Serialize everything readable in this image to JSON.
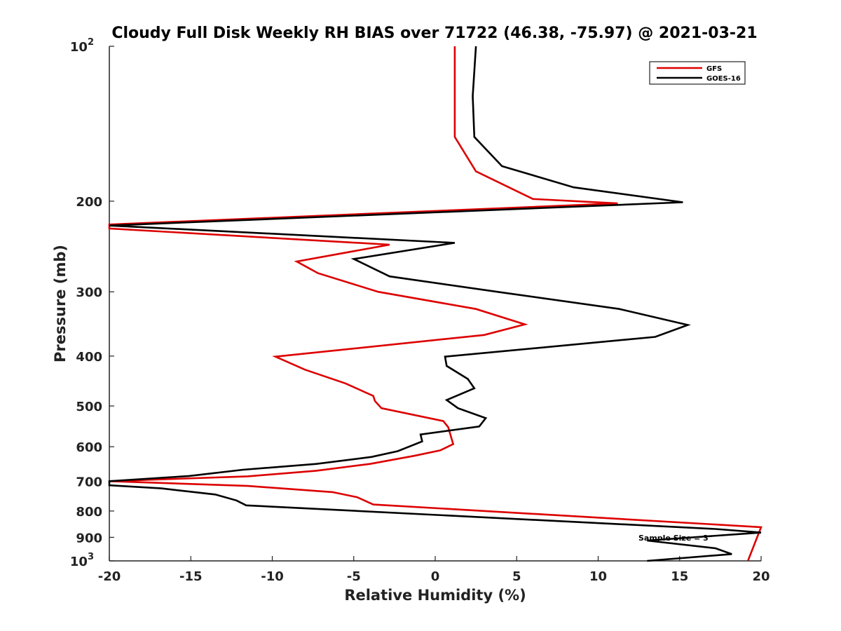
{
  "chart_data": {
    "type": "line",
    "title": "Cloudy Full Disk Weekly RH BIAS over 71722 (46.38, -75.97) @ 2021-03-21",
    "xlabel": "Relative Humidity (%)",
    "ylabel": "Pressure (mb)",
    "xlim": [
      -20,
      20
    ],
    "ylim": [
      100,
      1000
    ],
    "yscale": "log",
    "y_reversed": true,
    "xticks": [
      -20,
      -15,
      -10,
      -5,
      0,
      5,
      10,
      15,
      20
    ],
    "yticks": [
      {
        "value": 100,
        "label": "10",
        "sup": "2"
      },
      {
        "value": 200,
        "label": "200",
        "sup": ""
      },
      {
        "value": 300,
        "label": "300",
        "sup": ""
      },
      {
        "value": 400,
        "label": "400",
        "sup": ""
      },
      {
        "value": 500,
        "label": "500",
        "sup": ""
      },
      {
        "value": 600,
        "label": "600",
        "sup": ""
      },
      {
        "value": 700,
        "label": "700",
        "sup": ""
      },
      {
        "value": 800,
        "label": "800",
        "sup": ""
      },
      {
        "value": 900,
        "label": "900",
        "sup": ""
      },
      {
        "value": 1000,
        "label": "10",
        "sup": "3"
      }
    ],
    "legend_position": "top-right",
    "annotation": "Sample Size = 3",
    "series": [
      {
        "name": "GFS",
        "color": "#dd0000",
        "points": [
          [
            1.2,
            100
          ],
          [
            1.2,
            150
          ],
          [
            2.5,
            175
          ],
          [
            6.0,
            198
          ],
          [
            11.2,
            202
          ],
          [
            -20.0,
            222
          ],
          [
            -20.0,
            226
          ],
          [
            -2.8,
            243
          ],
          [
            -8.5,
            262
          ],
          [
            -7.2,
            276
          ],
          [
            -3.5,
            300
          ],
          [
            2.5,
            324
          ],
          [
            5.5,
            347
          ],
          [
            3.0,
            364
          ],
          [
            -9.8,
            401
          ],
          [
            -8.0,
            425
          ],
          [
            -5.5,
            452
          ],
          [
            -3.8,
            478
          ],
          [
            -3.7,
            489
          ],
          [
            -3.3,
            505
          ],
          [
            0.5,
            535
          ],
          [
            0.8,
            550
          ],
          [
            1.1,
            593
          ],
          [
            0.3,
            610
          ],
          [
            -1.3,
            625
          ],
          [
            -4.0,
            648
          ],
          [
            -7.3,
            668
          ],
          [
            -11.5,
            685
          ],
          [
            -20.0,
            700
          ],
          [
            -11.5,
            715
          ],
          [
            -6.3,
            735
          ],
          [
            -4.8,
            752
          ],
          [
            -3.8,
            777
          ],
          [
            20.0,
            860
          ],
          [
            19.2,
            998
          ]
        ]
      },
      {
        "name": "GOES-16",
        "color": "#000000",
        "points": [
          [
            2.5,
            100
          ],
          [
            2.3,
            125
          ],
          [
            2.4,
            150
          ],
          [
            4.1,
            171
          ],
          [
            8.5,
            188
          ],
          [
            15.2,
            201
          ],
          [
            -20.0,
            223
          ],
          [
            1.2,
            241
          ],
          [
            -5.0,
            259
          ],
          [
            -2.8,
            280
          ],
          [
            3.8,
            300
          ],
          [
            11.3,
            324
          ],
          [
            15.5,
            348
          ],
          [
            13.5,
            367
          ],
          [
            0.6,
            401
          ],
          [
            0.7,
            418
          ],
          [
            2.0,
            443
          ],
          [
            2.4,
            462
          ],
          [
            0.7,
            487
          ],
          [
            1.4,
            505
          ],
          [
            3.1,
            528
          ],
          [
            2.7,
            548
          ],
          [
            -0.9,
            568
          ],
          [
            -0.8,
            586
          ],
          [
            -2.3,
            612
          ],
          [
            -3.9,
            628
          ],
          [
            -7.3,
            648
          ],
          [
            -11.8,
            665
          ],
          [
            -15.1,
            684
          ],
          [
            -20.0,
            700
          ],
          [
            -20.0,
            713
          ],
          [
            -16.8,
            723
          ],
          [
            -13.5,
            743
          ],
          [
            -12.2,
            763
          ],
          [
            -11.6,
            780
          ],
          [
            17.2,
            867
          ],
          [
            20.0,
            881
          ],
          [
            13.0,
            913
          ],
          [
            17.2,
            945
          ],
          [
            18.2,
            970
          ],
          [
            13.0,
            1000
          ]
        ]
      }
    ]
  }
}
